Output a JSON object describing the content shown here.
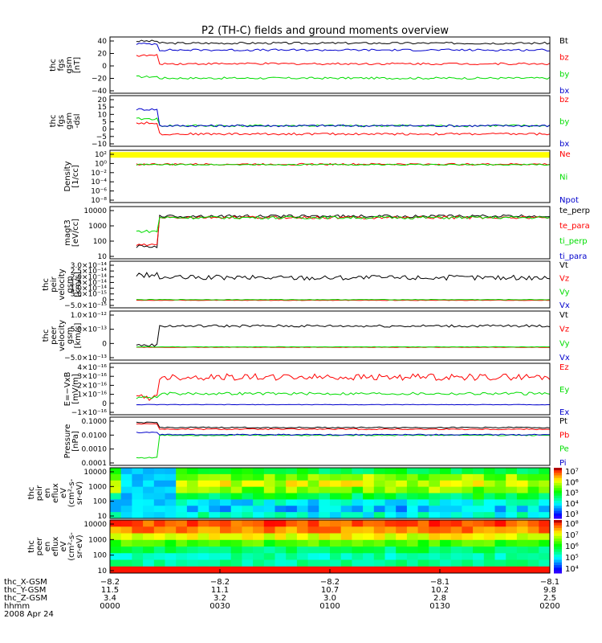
{
  "title": "P2 (TH-C) fields and ground moments overview",
  "colors": {
    "black": "#000000",
    "red": "#ff0000",
    "green": "#00dd00",
    "blue": "#0000cc",
    "yellow": "#ffff00",
    "axis": "#000000"
  },
  "chart_data": [
    {
      "id": "fgs_gsm",
      "type": "line",
      "ylabel": [
        "thc",
        "fgs",
        "gsm",
        "[nT]"
      ],
      "yticks": [
        "40",
        "20",
        "0",
        "−20",
        "−40"
      ],
      "ylim": [
        -40,
        42
      ],
      "series": [
        {
          "name": "Bt",
          "color": "black",
          "level": 33,
          "noise": 1.5,
          "early": 36
        },
        {
          "name": "bz",
          "color": "red",
          "level": 3,
          "noise": 1.5,
          "early": 15
        },
        {
          "name": "by",
          "color": "green",
          "level": -18,
          "noise": 1.5,
          "early": -16
        },
        {
          "name": "bx",
          "color": "blue",
          "level": 23,
          "noise": 1.5,
          "early": 32
        }
      ]
    },
    {
      "id": "fgs_dsl",
      "type": "line",
      "ylabel": [
        "thc",
        "fgs",
        "gsm",
        "-dsl"
      ],
      "yticks": [
        "20",
        "15",
        "10",
        "5",
        "0",
        "−5",
        "−10"
      ],
      "ylim": [
        -15,
        22
      ],
      "series": [
        {
          "name": "bz",
          "color": "red",
          "level": -6,
          "noise": 0.8,
          "early": 2
        },
        {
          "name": "by",
          "color": "green",
          "level": 0,
          "noise": 0.8,
          "early": 5
        },
        {
          "name": "bx",
          "color": "blue",
          "level": 0,
          "noise": 0.8,
          "early": 12
        }
      ]
    },
    {
      "id": "density",
      "type": "line",
      "ylabel": [
        "Density",
        "[1/cc]"
      ],
      "yticks": [
        "10²",
        "10⁰",
        "10⁻²",
        "10⁻⁴",
        "10⁻⁶",
        "10⁻⁸"
      ],
      "ylim": [
        -9,
        3
      ],
      "band": {
        "color": "yellow",
        "from": 2.6,
        "to": 1.3
      },
      "series": [
        {
          "name": "Ne",
          "color": "red",
          "level": -0.2,
          "noise": 0.2,
          "early": -0.2
        },
        {
          "name": "Ni",
          "color": "green",
          "level": -0.3,
          "noise": 0.15,
          "early": -0.3
        },
        {
          "name": "Npot",
          "color": "blue",
          "level": null
        }
      ]
    },
    {
      "id": "temperature",
      "type": "line",
      "ylabel": [
        "magt3",
        "[eV/cc]"
      ],
      "yticks": [
        "10000",
        "1000",
        "100",
        "10"
      ],
      "ylim": [
        0.3,
        4.1
      ],
      "series": [
        {
          "name": "te_perp",
          "color": "black",
          "level": 3.4,
          "noise": 0.1,
          "early": 1.2
        },
        {
          "name": "te_para",
          "color": "red",
          "level": 3.3,
          "noise": 0.1,
          "early": 1.3
        },
        {
          "name": "ti_perp",
          "color": "green",
          "level": 3.3,
          "noise": 0.1,
          "early": 2.3
        },
        {
          "name": "ti_para",
          "color": "blue",
          "level": null
        }
      ]
    },
    {
      "id": "peir_velocity",
      "type": "line",
      "ylabel": [
        "thc",
        "peir",
        "velocity",
        "gsm",
        "[km/s]"
      ],
      "yticks": [
        "3.0×10⁻¹⁴",
        "2.5×10⁻¹⁴",
        "2.0×10⁻¹⁴",
        "1.5×10⁻¹⁴",
        "1.0×10⁻¹⁴",
        "5.0×10⁻¹⁵",
        "0",
        "−5.0×10⁻¹⁵"
      ],
      "ylim": [
        -0.6,
        3.1
      ],
      "series": [
        {
          "name": "Vt",
          "color": "black",
          "level": 1.8,
          "noise": 0.2,
          "early": 2.0
        },
        {
          "name": "Vz",
          "color": "red",
          "level": 0,
          "noise": 0.02,
          "early": 0
        },
        {
          "name": "Vy",
          "color": "green",
          "level": 0.05,
          "noise": 0.02,
          "early": 0.05
        },
        {
          "name": "Vx",
          "color": "blue",
          "level": null
        }
      ]
    },
    {
      "id": "peer_velocity",
      "type": "line",
      "ylabel": [
        "thc",
        "peer",
        "velocity",
        "gsm",
        "[km/s]"
      ],
      "yticks": [
        "1.0×10⁻¹²",
        "5.0×10⁻¹³",
        "0",
        "−5.0×10⁻¹³"
      ],
      "ylim": [
        -0.6,
        1.7
      ],
      "series": [
        {
          "name": "Vt",
          "color": "black",
          "level": 1.0,
          "noise": 0.06,
          "early": 0.1
        },
        {
          "name": "Vz",
          "color": "red",
          "level": 0,
          "noise": 0.01,
          "early": 0
        },
        {
          "name": "Vy",
          "color": "green",
          "level": 0.02,
          "noise": 0.01,
          "early": 0.02
        },
        {
          "name": "Vx",
          "color": "blue",
          "level": null
        }
      ]
    },
    {
      "id": "efield",
      "type": "line",
      "ylabel": [
        "E=−VxB",
        "[mV/m]"
      ],
      "yticks": [
        "4×10⁻¹⁶",
        "3×10⁻¹⁶",
        "2×10⁻¹⁶",
        "1×10⁻¹⁶",
        "0",
        "−1×10⁻¹⁶"
      ],
      "ylim": [
        -1.1,
        4.5
      ],
      "series": [
        {
          "name": "Ez",
          "color": "red",
          "level": 3.0,
          "noise": 0.35,
          "early": 0.8
        },
        {
          "name": "Ey",
          "color": "green",
          "level": 1.2,
          "noise": 0.15,
          "early": 0.8
        },
        {
          "name": "Ex",
          "color": "blue",
          "level": 0,
          "noise": 0.03,
          "early": 0
        }
      ]
    },
    {
      "id": "pressure",
      "type": "line",
      "ylabel": [
        "Pressure",
        "[nPa]"
      ],
      "yticks": [
        "0.1000",
        "0.0100",
        "0.0010",
        "0.0001"
      ],
      "ylim": [
        -4.2,
        0.2
      ],
      "series": [
        {
          "name": "Pt",
          "color": "black",
          "level": -0.75,
          "noise": 0.05,
          "early": -0.3
        },
        {
          "name": "Pb",
          "color": "red",
          "level": -0.9,
          "noise": 0.05,
          "early": -0.4
        },
        {
          "name": "Pe",
          "color": "green",
          "level": -1.45,
          "noise": 0.05,
          "early": -3.5
        },
        {
          "name": "Pi",
          "color": "blue",
          "level": -1.4,
          "noise": 0.05,
          "early": -1.2
        }
      ]
    },
    {
      "id": "peir_spec",
      "type": "heatmap",
      "ylabel": [
        "thc",
        "peir",
        "en",
        "eflux",
        "eV",
        "(cm²-s-",
        "sr-eV)"
      ],
      "yticks": [
        "10000",
        "1000",
        "100",
        "10"
      ],
      "colorbar": [
        "10⁷",
        "10⁶",
        "10⁵",
        "10⁴",
        "10³"
      ]
    },
    {
      "id": "peer_spec",
      "type": "heatmap",
      "ylabel": [
        "thc",
        "peer",
        "en",
        "eflux",
        "eV",
        "(cm²-s-",
        "sr-eV)"
      ],
      "yticks": [
        "10000",
        "1000",
        "100",
        "10"
      ],
      "colorbar": [
        "10⁸",
        "10⁷",
        "10⁶",
        "10⁵",
        "10⁴"
      ]
    }
  ],
  "x_axis": {
    "rows": [
      {
        "label": "thc_X-GSM",
        "values": [
          "−8.2",
          "−8.2",
          "−8.2",
          "−8.1",
          "−8.1"
        ]
      },
      {
        "label": "thc_Y-GSM",
        "values": [
          "11.5",
          "11.1",
          "10.7",
          "10.2",
          "9.8"
        ]
      },
      {
        "label": "thc_Z-GSM",
        "values": [
          "3.4",
          "3.2",
          "3.0",
          "2.8",
          "2.5"
        ]
      },
      {
        "label": "hhmm",
        "values": [
          "0000",
          "0030",
          "0100",
          "0130",
          "0200"
        ]
      }
    ],
    "date": "2008 Apr 24"
  }
}
